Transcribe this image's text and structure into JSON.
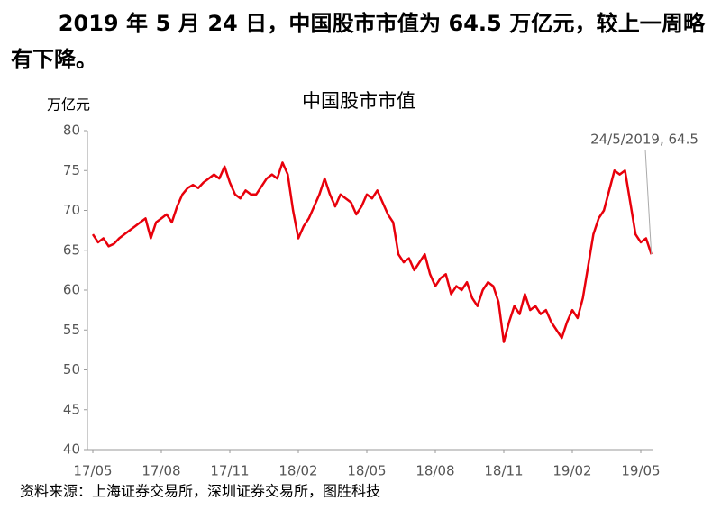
{
  "headline": "2019 年 5 月 24 日，中国股市市值为 64.5 万亿元，较上一周略有下降。",
  "chart_data": {
    "type": "line",
    "title": "中国股市市值",
    "y_label": "万亿元",
    "source": "资料来源：上海证券交易所，深圳证券交易所，图胜科技",
    "annotation": "24/5/2019, 64.5",
    "categories": [
      "17/05",
      null,
      null,
      null,
      null,
      null,
      null,
      null,
      null,
      null,
      null,
      null,
      null,
      "17/08",
      null,
      null,
      null,
      null,
      null,
      null,
      null,
      null,
      null,
      null,
      null,
      null,
      "17/11",
      null,
      null,
      null,
      null,
      null,
      null,
      null,
      null,
      null,
      null,
      null,
      null,
      "18/02",
      null,
      null,
      null,
      null,
      null,
      null,
      null,
      null,
      null,
      null,
      null,
      null,
      "18/05",
      null,
      null,
      null,
      null,
      null,
      null,
      null,
      null,
      null,
      null,
      null,
      null,
      "18/08",
      null,
      null,
      null,
      null,
      null,
      null,
      null,
      null,
      null,
      null,
      null,
      null,
      "18/11",
      null,
      null,
      null,
      null,
      null,
      null,
      null,
      null,
      null,
      null,
      null,
      null,
      "19/02",
      null,
      null,
      null,
      null,
      null,
      null,
      null,
      null,
      null,
      null,
      null,
      null,
      "19/05",
      null,
      null
    ],
    "series": [
      {
        "name": "中国股市市值",
        "color": "#e8000b",
        "values": [
          67,
          66,
          66.5,
          65.5,
          65.8,
          66.5,
          67,
          67.5,
          68,
          68.5,
          69,
          66.5,
          68.5,
          69,
          69.5,
          68.5,
          70.5,
          72,
          72.8,
          73.2,
          72.8,
          73.5,
          74,
          74.5,
          74,
          75.5,
          73.5,
          72,
          71.5,
          72.5,
          72,
          72,
          73,
          74,
          74.5,
          74,
          76,
          74.5,
          70,
          66.5,
          68,
          69,
          70.5,
          72,
          74,
          72,
          70.5,
          72,
          71.5,
          71,
          69.5,
          70.5,
          72,
          71.5,
          72.5,
          71,
          69.5,
          68.5,
          64.5,
          63.5,
          64,
          62.5,
          63.5,
          64.5,
          62,
          60.5,
          61.5,
          62,
          59.5,
          60.5,
          60,
          61,
          59,
          58,
          60,
          61,
          60.5,
          58.5,
          53.5,
          56,
          58,
          57,
          59.5,
          57.5,
          58,
          57,
          57.5,
          56,
          55,
          54,
          56,
          57.5,
          56.5,
          59,
          63,
          67,
          69,
          70,
          72.5,
          75,
          74.5,
          75,
          71,
          67,
          66,
          66.5,
          64.5
        ]
      }
    ],
    "ylim": [
      40,
      80
    ],
    "yticks": [
      40,
      45,
      50,
      55,
      60,
      65,
      70,
      75,
      80
    ],
    "grid": false
  }
}
